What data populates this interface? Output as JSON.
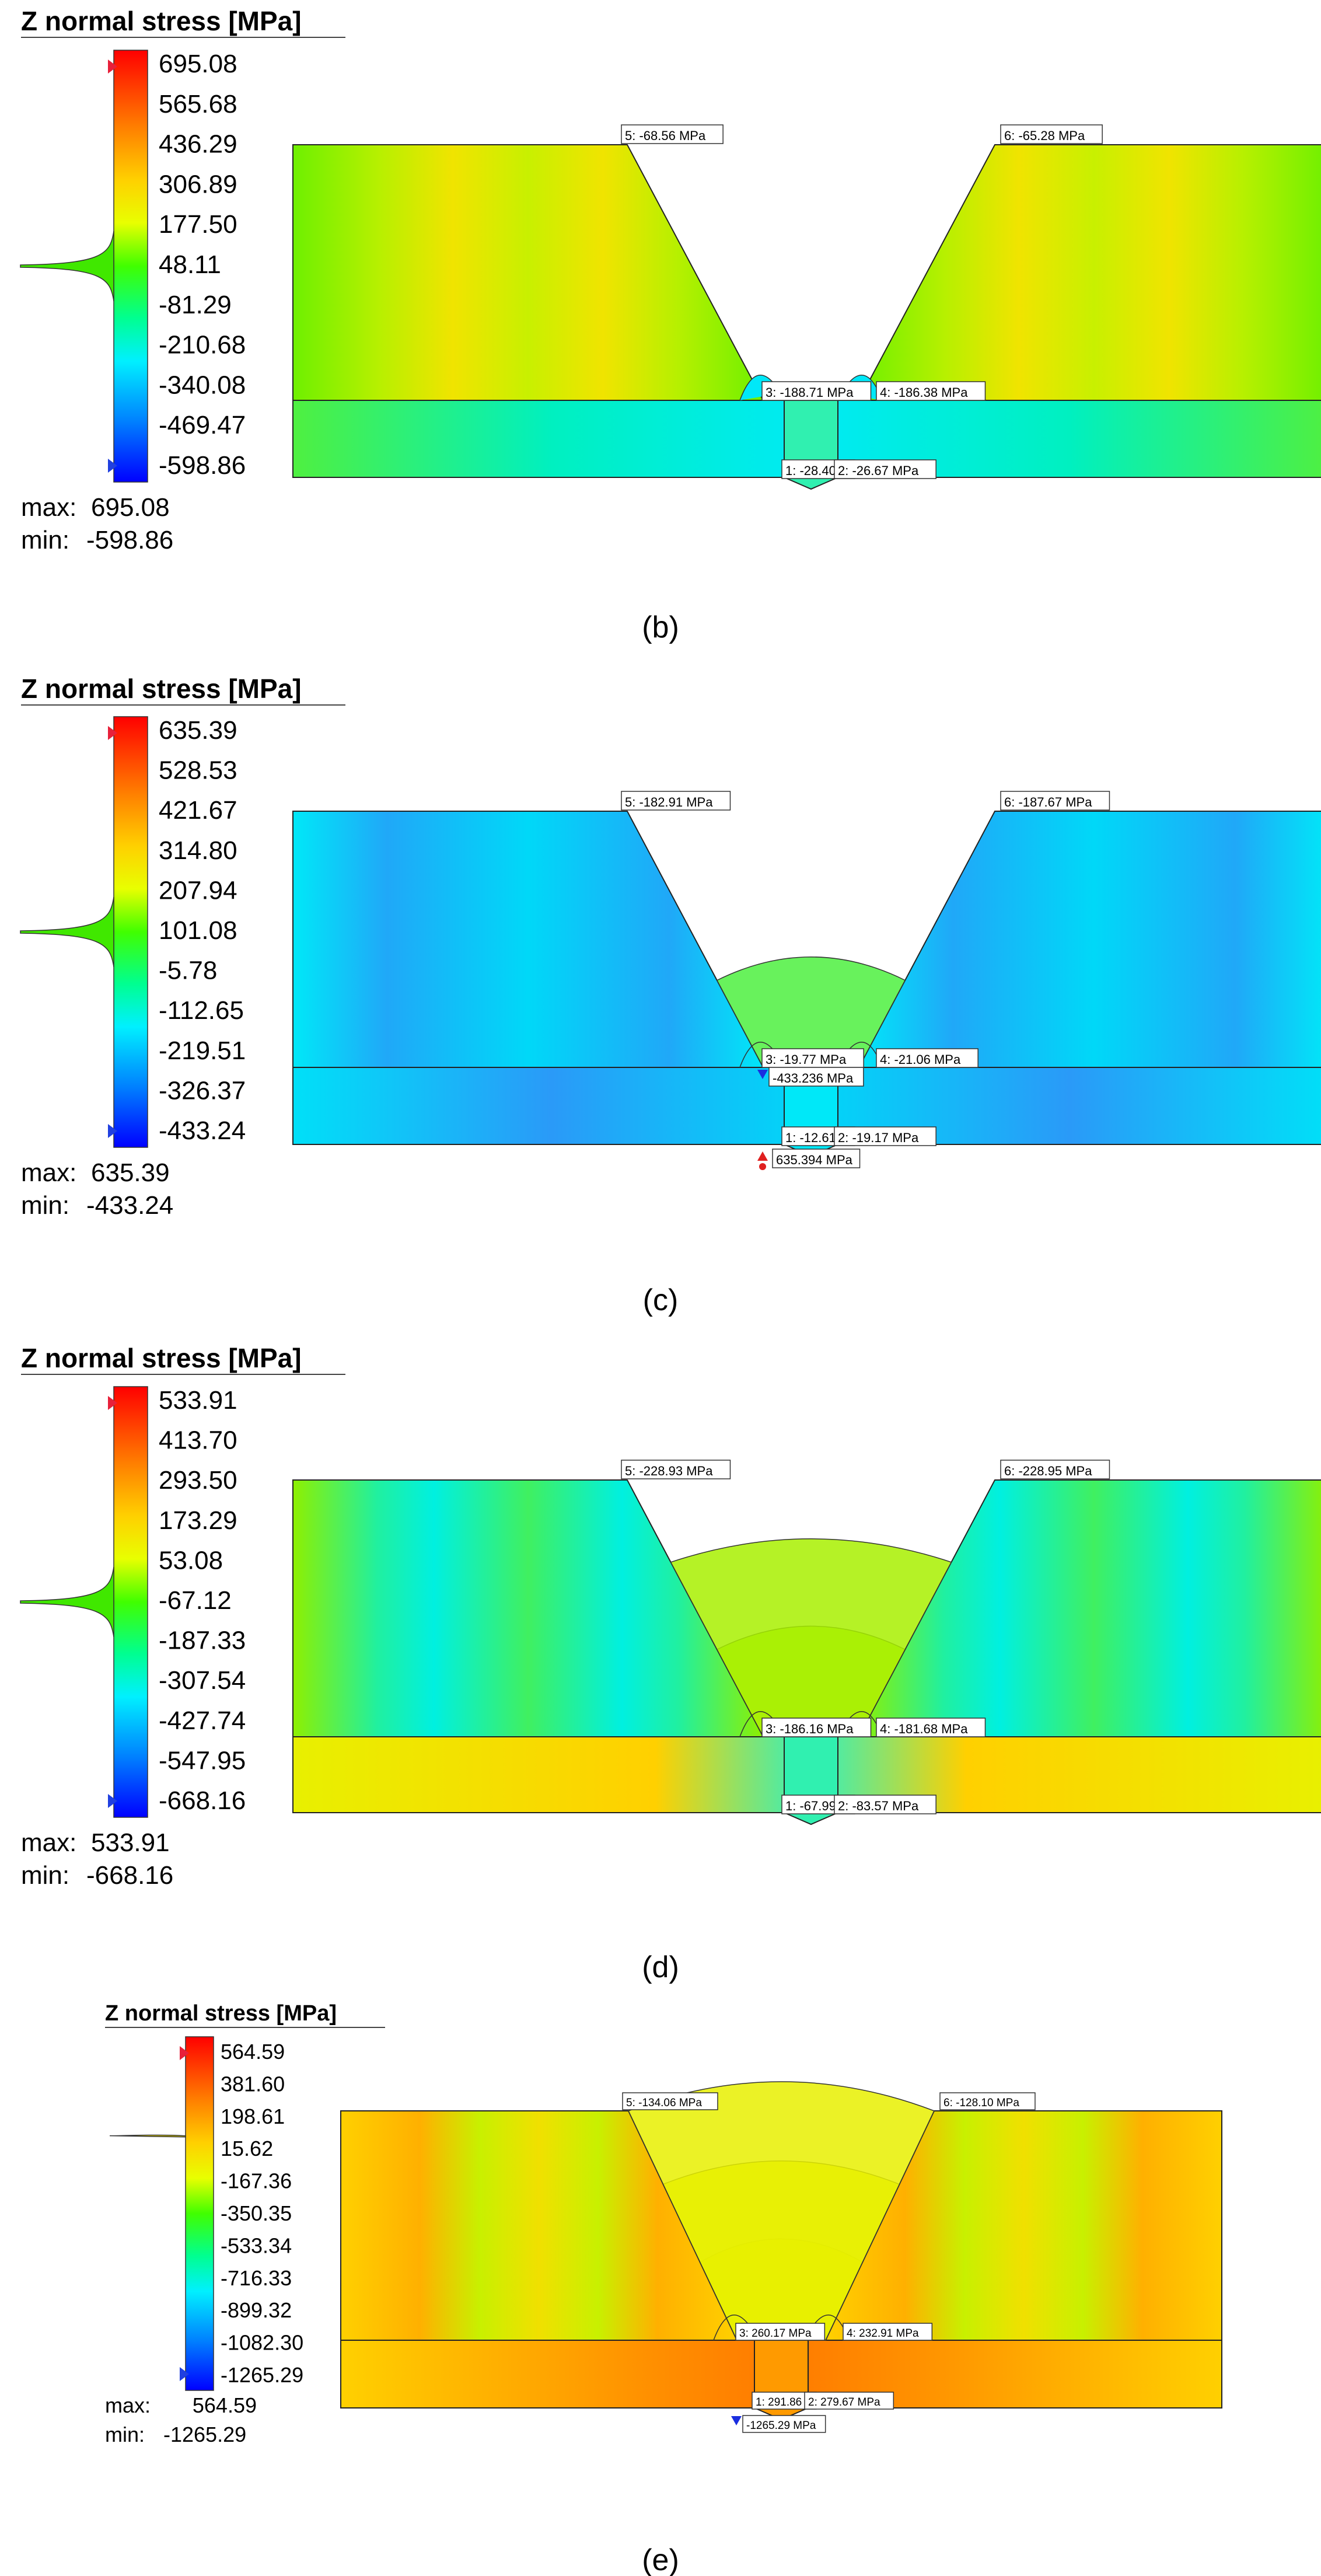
{
  "panels": [
    {
      "id": "b",
      "caption": "(b)",
      "legend_title": "Z normal stress [MPa]",
      "ticks": [
        "695.08",
        "565.68",
        "436.29",
        "306.89",
        "177.50",
        "48.11",
        "-81.29",
        "-210.68",
        "-340.08",
        "-469.47",
        "-598.86"
      ],
      "max_label": "max:",
      "max_value": "695.08",
      "min_label": "min:",
      "min_value": "-598.86",
      "probes": [
        {
          "id": "p5",
          "text": "5: -68.56 MPa"
        },
        {
          "id": "p6",
          "text": "6: -65.28 MPa"
        },
        {
          "id": "p3",
          "text": "3: -188.71 MPa"
        },
        {
          "id": "p4",
          "text": "4: -186.38 MPa"
        },
        {
          "id": "p1",
          "text": "1: -28.40"
        },
        {
          "id": "p2",
          "text": "2: -26.67 MPa"
        }
      ],
      "extreme_markers": []
    },
    {
      "id": "c",
      "caption": "(c)",
      "legend_title": "Z normal stress [MPa]",
      "ticks": [
        "635.39",
        "528.53",
        "421.67",
        "314.80",
        "207.94",
        "101.08",
        "-5.78",
        "-112.65",
        "-219.51",
        "-326.37",
        "-433.24"
      ],
      "max_label": "max:",
      "max_value": "635.39",
      "min_label": "min:",
      "min_value": "-433.24",
      "probes": [
        {
          "id": "p5",
          "text": "5: -182.91 MPa"
        },
        {
          "id": "p6",
          "text": "6: -187.67 MPa"
        },
        {
          "id": "p3",
          "text": "3: -19.77 MPa"
        },
        {
          "id": "p4",
          "text": "4: -21.06 MPa"
        },
        {
          "id": "p1",
          "text": "1: -12.61"
        },
        {
          "id": "p2",
          "text": "2: -19.17 MPa"
        }
      ],
      "extreme_markers": [
        {
          "id": "min",
          "text": "-433.236 MPa"
        },
        {
          "id": "max",
          "text": "635.394 MPa"
        }
      ]
    },
    {
      "id": "d",
      "caption": "(d)",
      "legend_title": "Z normal stress [MPa]",
      "ticks": [
        "533.91",
        "413.70",
        "293.50",
        "173.29",
        "53.08",
        "-67.12",
        "-187.33",
        "-307.54",
        "-427.74",
        "-547.95",
        "-668.16"
      ],
      "max_label": "max:",
      "max_value": "533.91",
      "min_label": "min:",
      "min_value": "-668.16",
      "probes": [
        {
          "id": "p5",
          "text": "5: -228.93 MPa"
        },
        {
          "id": "p6",
          "text": "6: -228.95 MPa"
        },
        {
          "id": "p3",
          "text": "3: -186.16 MPa"
        },
        {
          "id": "p4",
          "text": "4: -181.68 MPa"
        },
        {
          "id": "p1",
          "text": "1: -67.99"
        },
        {
          "id": "p2",
          "text": "2: -83.57 MPa"
        }
      ],
      "extreme_markers": []
    },
    {
      "id": "e",
      "caption": "(e)",
      "legend_title": "Z normal stress [MPa]",
      "ticks": [
        "564.59",
        "381.60",
        "198.61",
        "15.62",
        "-167.36",
        "-350.35",
        "-533.34",
        "-716.33",
        "-899.32",
        "-1082.30",
        "-1265.29"
      ],
      "max_label": "max:",
      "max_value": "564.59",
      "min_label": "min:",
      "min_value": "-1265.29",
      "probes": [
        {
          "id": "p5",
          "text": "5: -134.06 MPa"
        },
        {
          "id": "p6",
          "text": "6: -128.10 MPa"
        },
        {
          "id": "p3",
          "text": "3: 260.17 MPa"
        },
        {
          "id": "p4",
          "text": "4: 232.91 MPa"
        },
        {
          "id": "p1",
          "text": "1: 291.86"
        },
        {
          "id": "p2",
          "text": "2: 279.67 MPa"
        }
      ],
      "extreme_markers": [
        {
          "id": "min",
          "text": "-1265.29 MPa"
        }
      ]
    }
  ]
}
